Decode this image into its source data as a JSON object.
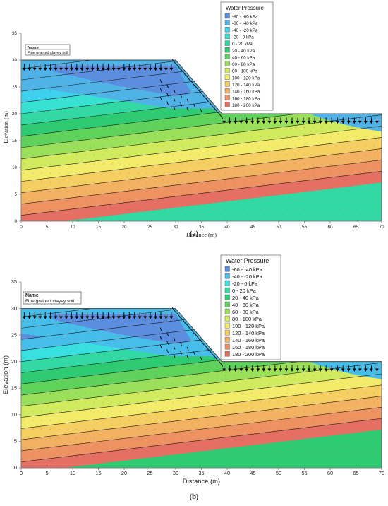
{
  "colors": {
    "contour_line": "#1a1a1a",
    "grid_dot": "#8a6fb0",
    "arrow": "#000000",
    "axis": "#7f7f7f",
    "mesh_edge": "#3a3a3a"
  },
  "panels": [
    {
      "id": "a",
      "caption": "(a)",
      "xlabel": "Distance (m)",
      "ylabel": "Elevation (m)",
      "xticks": [
        "0",
        "5",
        "10",
        "15",
        "20",
        "25",
        "30",
        "35",
        "40",
        "45",
        "50",
        "55",
        "60",
        "65",
        "70"
      ],
      "yticks": [
        "0",
        "5",
        "10",
        "15",
        "20",
        "25",
        "30",
        "35"
      ],
      "name_box": {
        "title": "Name",
        "value": "Fine grained clayey soil"
      },
      "legend_title": "Water Pressure",
      "legend": [
        {
          "label": "-80 - -60 kPa",
          "color": "#5b8ede"
        },
        {
          "label": "-60 - -40 kPa",
          "color": "#4fb3e8"
        },
        {
          "label": "-40 - -20 kPa",
          "color": "#3fd0ee"
        },
        {
          "label": "-20 - 0 kPa",
          "color": "#38e2d2"
        },
        {
          "label": "0 - 20 kPa",
          "color": "#33d9a3"
        },
        {
          "label": "20 - 40 kPa",
          "color": "#2ecb73"
        },
        {
          "label": "40 - 60 kPa",
          "color": "#5ed25a"
        },
        {
          "label": "60 - 80 kPa",
          "color": "#9be05a"
        },
        {
          "label": "80 - 100 kPa",
          "color": "#d2ea5e"
        },
        {
          "label": "100 - 120 kPa",
          "color": "#f3ec6a"
        },
        {
          "label": "120 - 140 kPa",
          "color": "#f6cf63"
        },
        {
          "label": "140 - 160 kPa",
          "color": "#f3b262"
        },
        {
          "label": "160 - 180 kPa",
          "color": "#ef9262"
        },
        {
          "label": "180 - 200 kPa",
          "color": "#e56f62"
        }
      ]
    },
    {
      "id": "b",
      "caption": "(b)",
      "xlabel": "Distance (m)",
      "ylabel": "Elevation (m)",
      "xticks": [
        "0",
        "5",
        "10",
        "15",
        "20",
        "25",
        "30",
        "35",
        "40",
        "45",
        "50",
        "55",
        "60",
        "65",
        "70"
      ],
      "yticks": [
        "0",
        "5",
        "10",
        "15",
        "20",
        "25",
        "30",
        "35"
      ],
      "name_box": {
        "title": "Name",
        "value": "Fine grained clayey soil"
      },
      "legend_title": "Water Pressure",
      "legend": [
        {
          "label": "-60 - -40 kPa",
          "color": "#5b8ede"
        },
        {
          "label": "-40 - -20 kPa",
          "color": "#47bde9"
        },
        {
          "label": "-20 - 0 kPa",
          "color": "#38e0e0"
        },
        {
          "label": "0 - 20 kPa",
          "color": "#33d9a3"
        },
        {
          "label": "20 - 40 kPa",
          "color": "#2ecb73"
        },
        {
          "label": "40 - 60 kPa",
          "color": "#5ed25a"
        },
        {
          "label": "60 - 80 kPa",
          "color": "#9be05a"
        },
        {
          "label": "80 - 100 kPa",
          "color": "#d2ea5e"
        },
        {
          "label": "100 - 120 kPa",
          "color": "#f3ec6a"
        },
        {
          "label": "120 - 140 kPa",
          "color": "#f6cf63"
        },
        {
          "label": "140 - 160 kPa",
          "color": "#f3b262"
        },
        {
          "label": "160 - 180 kPa",
          "color": "#ef9262"
        },
        {
          "label": "180 - 200 kPa",
          "color": "#e56f62"
        }
      ]
    }
  ]
}
